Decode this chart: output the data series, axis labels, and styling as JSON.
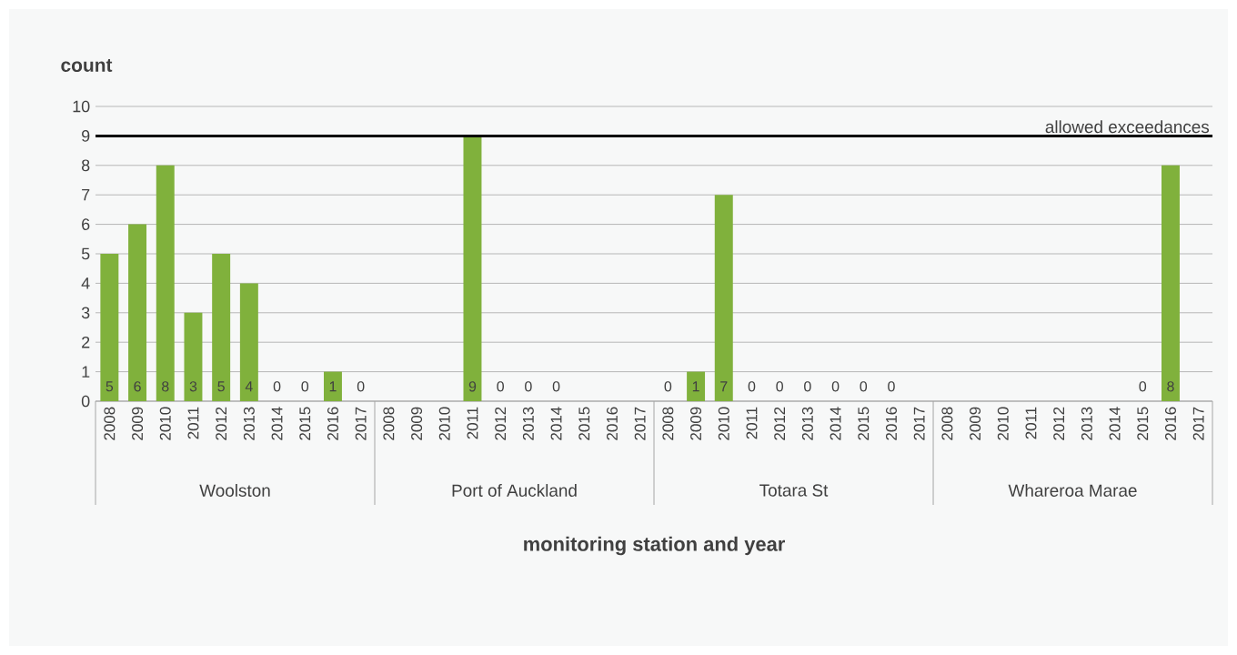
{
  "chart_data": {
    "type": "bar",
    "ylabel": "count",
    "xlabel": "monitoring station and year",
    "categories": [
      "2008",
      "2009",
      "2010",
      "2011",
      "2012",
      "2013",
      "2014",
      "2015",
      "2016",
      "2017",
      "2008",
      "2009",
      "2010",
      "2011",
      "2012",
      "2013",
      "2014",
      "2015",
      "2016",
      "2017",
      "2008",
      "2009",
      "2010",
      "2011",
      "2012",
      "2013",
      "2014",
      "2015",
      "2016",
      "2017",
      "2008",
      "2009",
      "2010",
      "2011",
      "2012",
      "2013",
      "2014",
      "2015",
      "2016",
      "2017"
    ],
    "values": [
      5,
      6,
      8,
      3,
      5,
      4,
      0,
      0,
      1,
      0,
      null,
      null,
      null,
      9,
      0,
      0,
      0,
      null,
      null,
      null,
      0,
      1,
      7,
      0,
      0,
      0,
      0,
      0,
      0,
      null,
      null,
      null,
      null,
      null,
      null,
      null,
      null,
      0,
      8,
      null
    ],
    "color": "#80b13c",
    "data_labels": true,
    "annotations": [
      "Woolston",
      "Port of Auckland",
      "Totara St",
      "Whareroa Marae"
    ],
    "ref_lines": [
      {
        "axis": "y",
        "value": 9,
        "label": "allowed exceedances",
        "color": "#000000"
      }
    ],
    "ylim": [
      0,
      10
    ],
    "yticks": [
      0,
      1,
      2,
      3,
      4,
      5,
      6,
      7,
      8,
      9,
      10
    ],
    "grid": "y"
  }
}
